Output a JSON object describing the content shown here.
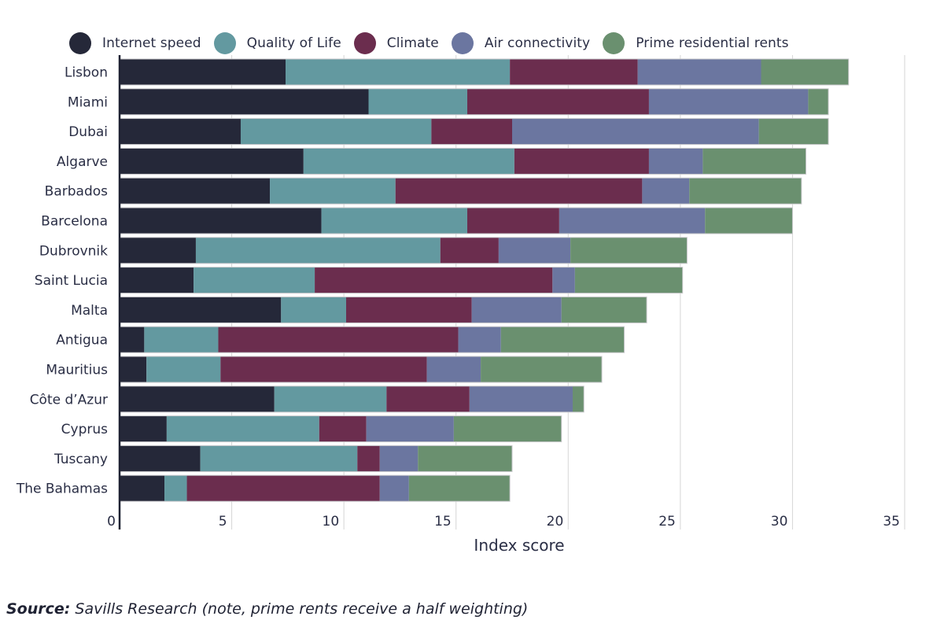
{
  "chart_data": {
    "type": "bar",
    "orientation": "horizontal",
    "stacked": true,
    "title": "",
    "xlabel": "Index score",
    "ylabel": "",
    "xlim": [
      0,
      35
    ],
    "xticks": [
      0,
      5,
      10,
      15,
      20,
      25,
      30,
      35
    ],
    "grid": true,
    "legend_position": "top",
    "categories": [
      "Lisbon",
      "Miami",
      "Dubai",
      "Algarve",
      "Barbados",
      "Barcelona",
      "Dubrovnik",
      "Saint Lucia",
      "Malta",
      "Antigua",
      "Mauritius",
      "Côte d’Azur",
      "Cyprus",
      "Tuscany",
      "The Bahamas"
    ],
    "series": [
      {
        "name": "Internet speed",
        "color": "#252839",
        "values": [
          7.4,
          11.1,
          5.4,
          8.2,
          6.7,
          9.0,
          3.4,
          3.3,
          7.2,
          1.1,
          1.2,
          6.9,
          2.1,
          3.6,
          2.0
        ]
      },
      {
        "name": "Quality of Life",
        "color": "#6399a0",
        "values": [
          10.0,
          4.4,
          8.5,
          9.4,
          5.6,
          6.5,
          10.9,
          5.4,
          2.9,
          3.3,
          3.3,
          5.0,
          6.8,
          7.0,
          1.0
        ]
      },
      {
        "name": "Climate",
        "color": "#6b2d4e",
        "values": [
          5.7,
          8.1,
          3.6,
          6.0,
          11.0,
          4.1,
          2.6,
          10.6,
          5.6,
          10.7,
          9.2,
          3.7,
          2.1,
          1.0,
          8.6
        ]
      },
      {
        "name": "Air connectivity",
        "color": "#6b76a0",
        "values": [
          5.5,
          7.1,
          11.0,
          2.4,
          2.1,
          6.5,
          3.2,
          1.0,
          4.0,
          1.9,
          2.4,
          4.6,
          3.9,
          1.7,
          1.3
        ]
      },
      {
        "name": "Prime residential rents",
        "color": "#6a906f",
        "values": [
          3.9,
          0.9,
          3.1,
          4.6,
          5.0,
          3.9,
          5.2,
          4.8,
          3.8,
          5.5,
          5.4,
          0.5,
          4.8,
          4.2,
          4.5
        ]
      }
    ]
  },
  "source": {
    "label": "Source:",
    "text": " Savills Research (note, prime rents receive a half weighting)"
  }
}
